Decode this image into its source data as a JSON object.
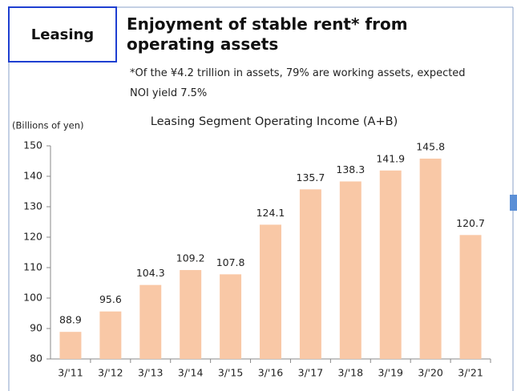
{
  "header": {
    "section": "Leasing",
    "title": "Enjoyment of stable rent* from operating assets",
    "note": "*Of the ¥4.2 trillion in assets, 79% are working assets, expected NOI yield 7.5%"
  },
  "chart_data": {
    "type": "bar",
    "title": "Leasing Segment Operating Income (A+B)",
    "y_label": "(Billions of yen)",
    "categories": [
      "3/'11",
      "3/'12",
      "3/'13",
      "3/'14",
      "3/'15",
      "3/'16",
      "3/'17",
      "3/'18",
      "3/'19",
      "3/'20",
      "3/'21"
    ],
    "values": [
      88.9,
      95.6,
      104.3,
      109.2,
      107.8,
      124.1,
      135.7,
      138.3,
      141.9,
      145.8,
      120.7
    ],
    "color": "#f9c8a6",
    "ylim": [
      80,
      150
    ],
    "yticks": [
      80,
      90,
      100,
      110,
      120,
      130,
      140,
      150
    ],
    "grid": false
  }
}
